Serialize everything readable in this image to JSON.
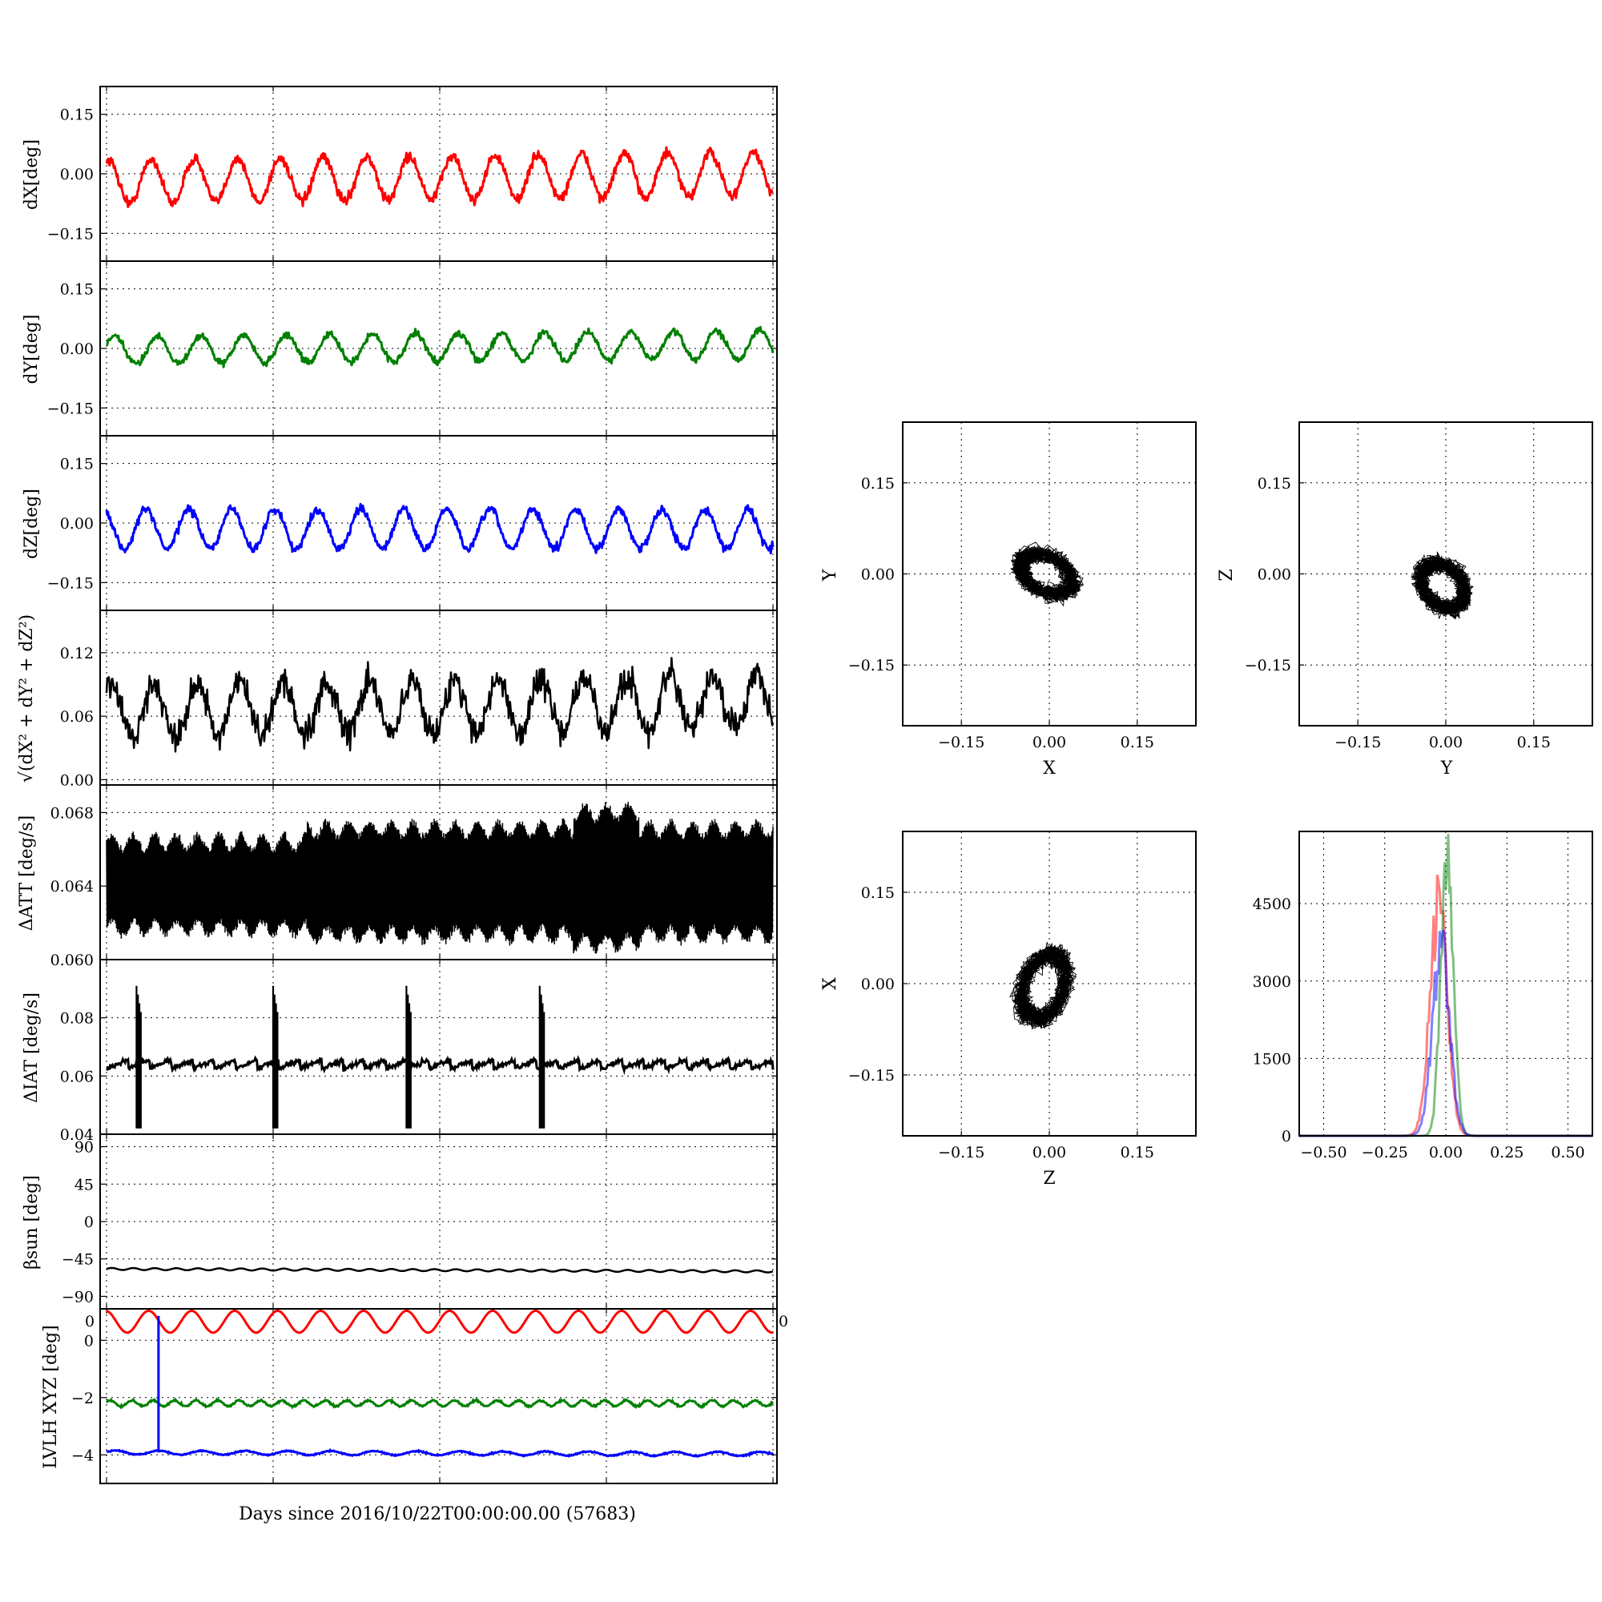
{
  "figure": {
    "x_axis_label": "Days since 2016/10/22T00:00:00.00 (57683)"
  },
  "chart_data": [
    {
      "id": "dX",
      "type": "line",
      "ylabel": "dX[deg]",
      "ylim": [
        -0.22,
        0.22
      ],
      "yticks": [
        0.15,
        0.0,
        -0.15
      ],
      "ytick_labels": [
        "0.15",
        "0.00",
        "−0.15"
      ],
      "color": "#ff0000",
      "linewidth": 3,
      "grid": true,
      "signal": {
        "kind": "sine",
        "offset": -0.02,
        "amplitude": 0.055,
        "cycles": 15.5,
        "phase": 1.3,
        "noise": 0.012,
        "trend": 0.02
      }
    },
    {
      "id": "dY",
      "type": "line",
      "ylabel": "dY[deg]",
      "ylim": [
        -0.22,
        0.22
      ],
      "yticks": [
        0.15,
        0.0,
        -0.15
      ],
      "ytick_labels": [
        "0.15",
        "0.00",
        "−0.15"
      ],
      "color": "#008000",
      "linewidth": 3,
      "grid": true,
      "signal": {
        "kind": "sine",
        "offset": -0.005,
        "amplitude": 0.035,
        "cycles": 15.5,
        "phase": 0.4,
        "noise": 0.008,
        "trend": 0.015
      }
    },
    {
      "id": "dZ",
      "type": "line",
      "ylabel": "dZ[deg]",
      "ylim": [
        -0.22,
        0.22
      ],
      "yticks": [
        0.15,
        0.0,
        -0.15
      ],
      "ytick_labels": [
        "0.15",
        "0.00",
        "−0.15"
      ],
      "color": "#0000ff",
      "linewidth": 3,
      "grid": true,
      "signal": {
        "kind": "sine",
        "offset": -0.015,
        "amplitude": 0.05,
        "cycles": 15.5,
        "phase": 2.1,
        "noise": 0.01,
        "trend": 0.0
      }
    },
    {
      "id": "mag",
      "type": "line",
      "ylabel": "√(dX² + dY² + dZ²)",
      "ylim": [
        -0.005,
        0.16
      ],
      "yticks": [
        0.12,
        0.06,
        0.0
      ],
      "ytick_labels": [
        "0.12",
        "0.06",
        "0.00"
      ],
      "color": "#000000",
      "linewidth": 2.5,
      "grid": true,
      "signal": {
        "kind": "sine",
        "offset": 0.065,
        "amplitude": 0.025,
        "cycles": 15.5,
        "phase": 0.9,
        "noise": 0.013,
        "trend": 0.008
      }
    },
    {
      "id": "dATT",
      "type": "line",
      "ylabel": "ΔATT [deg/s]",
      "ylim": [
        0.06,
        0.0695
      ],
      "yticks": [
        0.068,
        0.064,
        0.06
      ],
      "ytick_labels": [
        "0.068",
        "0.064",
        "0.060"
      ],
      "color": "#000000",
      "linewidth": 1.5,
      "grid": true,
      "signal": {
        "kind": "band",
        "center": 0.0641,
        "lower": 0.0619,
        "upper": 0.0662
      }
    },
    {
      "id": "dIAT",
      "type": "line",
      "ylabel": "ΔIAT [deg/s]",
      "ylim": [
        0.04,
        0.1
      ],
      "yticks": [
        0.08,
        0.06,
        0.04
      ],
      "ytick_labels": [
        "0.08",
        "0.06",
        "0.04"
      ],
      "color": "#000000",
      "linewidth": 3,
      "grid": true,
      "signal": {
        "kind": "sawtooth",
        "base": 0.064,
        "amp": 0.003,
        "cycles": 31,
        "spikes": [
          0.045,
          0.25,
          0.45,
          0.65
        ],
        "spike_low": 0.042,
        "spike_high": 0.091
      }
    },
    {
      "id": "beta",
      "type": "line",
      "ylabel": "βsun [deg]",
      "ylim": [
        -105,
        105
      ],
      "yticks": [
        90,
        45,
        0,
        -45,
        -90
      ],
      "ytick_labels": [
        "90",
        "45",
        "0",
        "−45",
        "−90"
      ],
      "color": "#000000",
      "linewidth": 2.5,
      "grid": true,
      "signal": {
        "kind": "sine",
        "offset": -57,
        "amplitude": 1.2,
        "cycles": 31,
        "phase": 0.0,
        "noise": 0.0,
        "trend": -3
      }
    },
    {
      "id": "lvlh",
      "type": "line",
      "ylabel": "LVLH XYZ [deg]",
      "ylim": [
        -5,
        1.1
      ],
      "yticks": [
        0,
        -2,
        -4
      ],
      "ytick_labels": [
        "0",
        "−2",
        "−4"
      ],
      "corner_tick_left": "0",
      "corner_tick_right": "0",
      "grid": true,
      "series": [
        {
          "name": "X",
          "color": "#ff0000",
          "signal": {
            "kind": "sine",
            "offset": 0.65,
            "amplitude": 0.38,
            "cycles": 15.5,
            "phase": 1.7,
            "noise": 0.0,
            "trend": 0.0
          }
        },
        {
          "name": "Y",
          "color": "#008000",
          "signal": {
            "kind": "sine",
            "offset": -2.2,
            "amplitude": 0.1,
            "cycles": 31,
            "phase": 0.5,
            "noise": 0.03,
            "trend": 0.0
          }
        },
        {
          "name": "Z",
          "color": "#0000ff",
          "signal": {
            "kind": "sine",
            "offset": -3.92,
            "amplitude": 0.07,
            "cycles": 15.5,
            "phase": 0.2,
            "noise": 0.02,
            "trend": -0.05
          },
          "spike_at": 0.078,
          "spike_to": 0.85
        }
      ]
    },
    {
      "id": "xy",
      "type": "scatter",
      "xlabel": "X",
      "ylabel": "Y",
      "xlim": [
        -0.25,
        0.25
      ],
      "ylim": [
        -0.25,
        0.25
      ],
      "xticks": [
        -0.15,
        0.0,
        0.15
      ],
      "yticks": [
        0.15,
        0.0,
        -0.15
      ],
      "xtick_labels": [
        "−0.15",
        "0.00",
        "0.15"
      ],
      "ytick_labels": [
        "0.15",
        "0.00",
        "−0.15"
      ],
      "grid": true,
      "color": "#000000",
      "cloud": {
        "cx": -0.005,
        "cy": 0.0,
        "rx": 0.06,
        "ry": 0.038,
        "angle": -25
      }
    },
    {
      "id": "yz",
      "type": "scatter",
      "xlabel": "Y",
      "ylabel": "Z",
      "xlim": [
        -0.25,
        0.25
      ],
      "ylim": [
        -0.25,
        0.25
      ],
      "xticks": [
        -0.15,
        0.0,
        0.15
      ],
      "yticks": [
        0.15,
        0.0,
        -0.15
      ],
      "xtick_labels": [
        "−0.15",
        "0.00",
        "0.15"
      ],
      "ytick_labels": [
        "0.15",
        "0.00",
        "−0.15"
      ],
      "grid": true,
      "color": "#000000",
      "cloud": {
        "cx": -0.005,
        "cy": -0.02,
        "rx": 0.055,
        "ry": 0.04,
        "angle": -45
      }
    },
    {
      "id": "zx",
      "type": "scatter",
      "xlabel": "Z",
      "ylabel": "X",
      "xlim": [
        -0.25,
        0.25
      ],
      "ylim": [
        -0.25,
        0.25
      ],
      "xticks": [
        -0.15,
        0.0,
        0.15
      ],
      "yticks": [
        0.15,
        0.0,
        -0.15
      ],
      "xtick_labels": [
        "−0.15",
        "0.00",
        "0.15"
      ],
      "ytick_labels": [
        "0.15",
        "0.00",
        "−0.15"
      ],
      "grid": true,
      "color": "#000000",
      "cloud": {
        "cx": -0.01,
        "cy": -0.005,
        "rx": 0.045,
        "ry": 0.07,
        "angle": -20
      }
    },
    {
      "id": "hist",
      "type": "histogram",
      "xlim": [
        -0.6,
        0.6
      ],
      "ylim": [
        0,
        5900
      ],
      "xticks": [
        -0.5,
        -0.25,
        0.0,
        0.25,
        0.5
      ],
      "yticks": [
        0,
        1500,
        3000,
        4500
      ],
      "xtick_labels": [
        "−0.50",
        "−0.25",
        "0.00",
        "0.25",
        "0.50"
      ],
      "ytick_labels": [
        "0",
        "1500",
        "3000",
        "4500"
      ],
      "grid": true,
      "series": [
        {
          "name": "dX",
          "color": "#ff0000",
          "mean": -0.03,
          "sigma": 0.035,
          "peak": 4500
        },
        {
          "name": "dY",
          "color": "#008000",
          "mean": 0.005,
          "sigma": 0.025,
          "peak": 5800
        },
        {
          "name": "dZ",
          "color": "#0000ff",
          "mean": -0.02,
          "sigma": 0.035,
          "peak": 3700
        }
      ]
    }
  ]
}
